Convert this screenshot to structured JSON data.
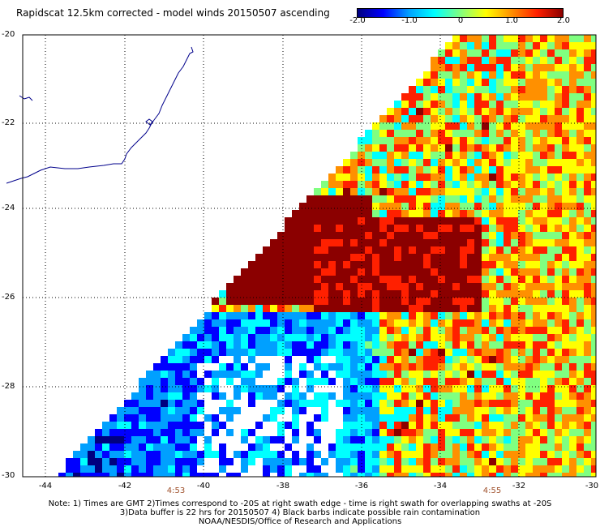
{
  "title": "Rapidscat 12.5km corrected - model winds 20150507 ascending",
  "colorbar": {
    "ticks": [
      "-2.0",
      "-1.0",
      "0",
      "1.0",
      "2.0"
    ],
    "colors": [
      "#00007f",
      "#0000ff",
      "#00a0ff",
      "#00ffff",
      "#80ff80",
      "#ffff00",
      "#ff9000",
      "#ff2000",
      "#8b0000"
    ]
  },
  "axes": {
    "lat_labels": [
      "-20",
      "-22",
      "-24",
      "-26",
      "-28",
      "-30"
    ],
    "lon_labels": [
      "-44",
      "-42",
      "-40",
      "-38",
      "-36",
      "-34",
      "-32",
      "-30"
    ]
  },
  "times": [
    {
      "label": "4:53",
      "lon": -41.1
    },
    {
      "label": "4:55",
      "lon": -32.6
    }
  ],
  "notes": [
    "Note: 1) Times are GMT 2)Times correspond to -20S at right swath edge - time is right swath for overlapping swaths at -20S",
    "3)Data buffer is 22 hrs for 20150507 4) Black barbs indicate possible rain contamination",
    "NOAA/NESDIS/Office of Research and Applications"
  ]
}
